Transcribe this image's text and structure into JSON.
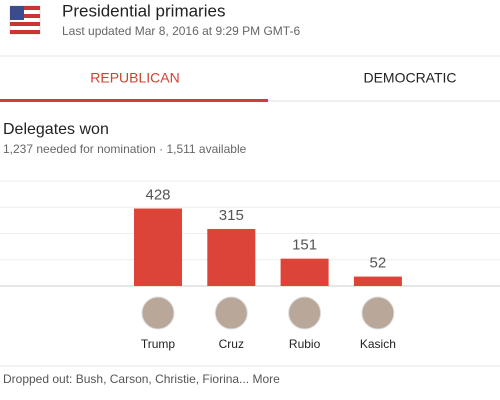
{
  "header": {
    "title": "Presidential primaries",
    "subtitle": "Last updated Mar 8, 2016 at 9:29 PM GMT-6"
  },
  "tabs": [
    "REPUBLICAN",
    "DEMOCRATIC"
  ],
  "chart_data": {
    "type": "bar",
    "title": "Delegates won",
    "subtitle": "1,237 needed for nomination · 1,511 available",
    "categories": [
      "Trump",
      "Cruz",
      "Rubio",
      "Kasich"
    ],
    "values": [
      428,
      315,
      151,
      52
    ],
    "color": "#db4437",
    "ylim": [
      0,
      580
    ],
    "yticks": [
      0,
      145,
      290,
      435,
      580
    ],
    "grid": true
  },
  "footer": "Dropped out: Bush, Carson, Christie, Fiorina... More"
}
